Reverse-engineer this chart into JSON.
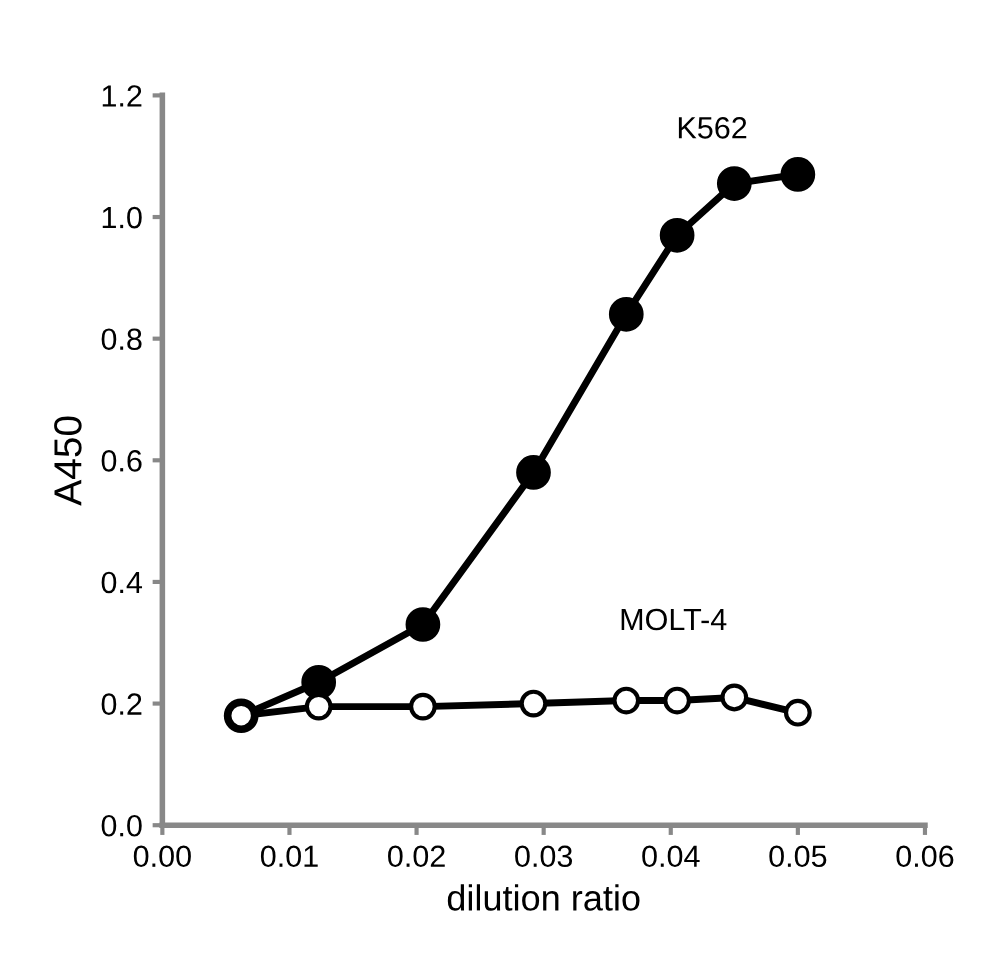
{
  "chart_data": {
    "type": "line",
    "xlabel": "dilution ratio",
    "ylabel": "A450",
    "xlim": [
      0,
      0.06
    ],
    "xticks": [
      {
        "value": 0,
        "label": "0.00"
      },
      0.01,
      0.02,
      0.03,
      0.04,
      0.05,
      0.06
    ],
    "ylim": [
      0,
      1.2
    ],
    "yticks": [
      {
        "value": 0,
        "label": "0.0"
      },
      0.2,
      0.4,
      0.6,
      0.8,
      {
        "value": 1,
        "label": "1.0"
      },
      1.2
    ],
    "x": [
      0.0062,
      0.0123,
      0.0205,
      0.0292,
      0.0365,
      0.0405,
      0.045,
      0.05
    ],
    "grid": false,
    "legend": false,
    "line_style": "solid",
    "series": [
      {
        "name": "K562",
        "color": "#000000",
        "marker": "circle",
        "values": [
          0.18,
          0.235,
          0.33,
          0.58,
          0.84,
          0.97,
          1.055,
          1.07
        ]
      },
      {
        "name": "MOLT-4",
        "color": "#ffffff",
        "marker": "circle",
        "values": [
          0.18,
          0.195,
          0.195,
          0.2,
          0.205,
          0.205,
          0.21,
          0.185
        ]
      }
    ]
  }
}
